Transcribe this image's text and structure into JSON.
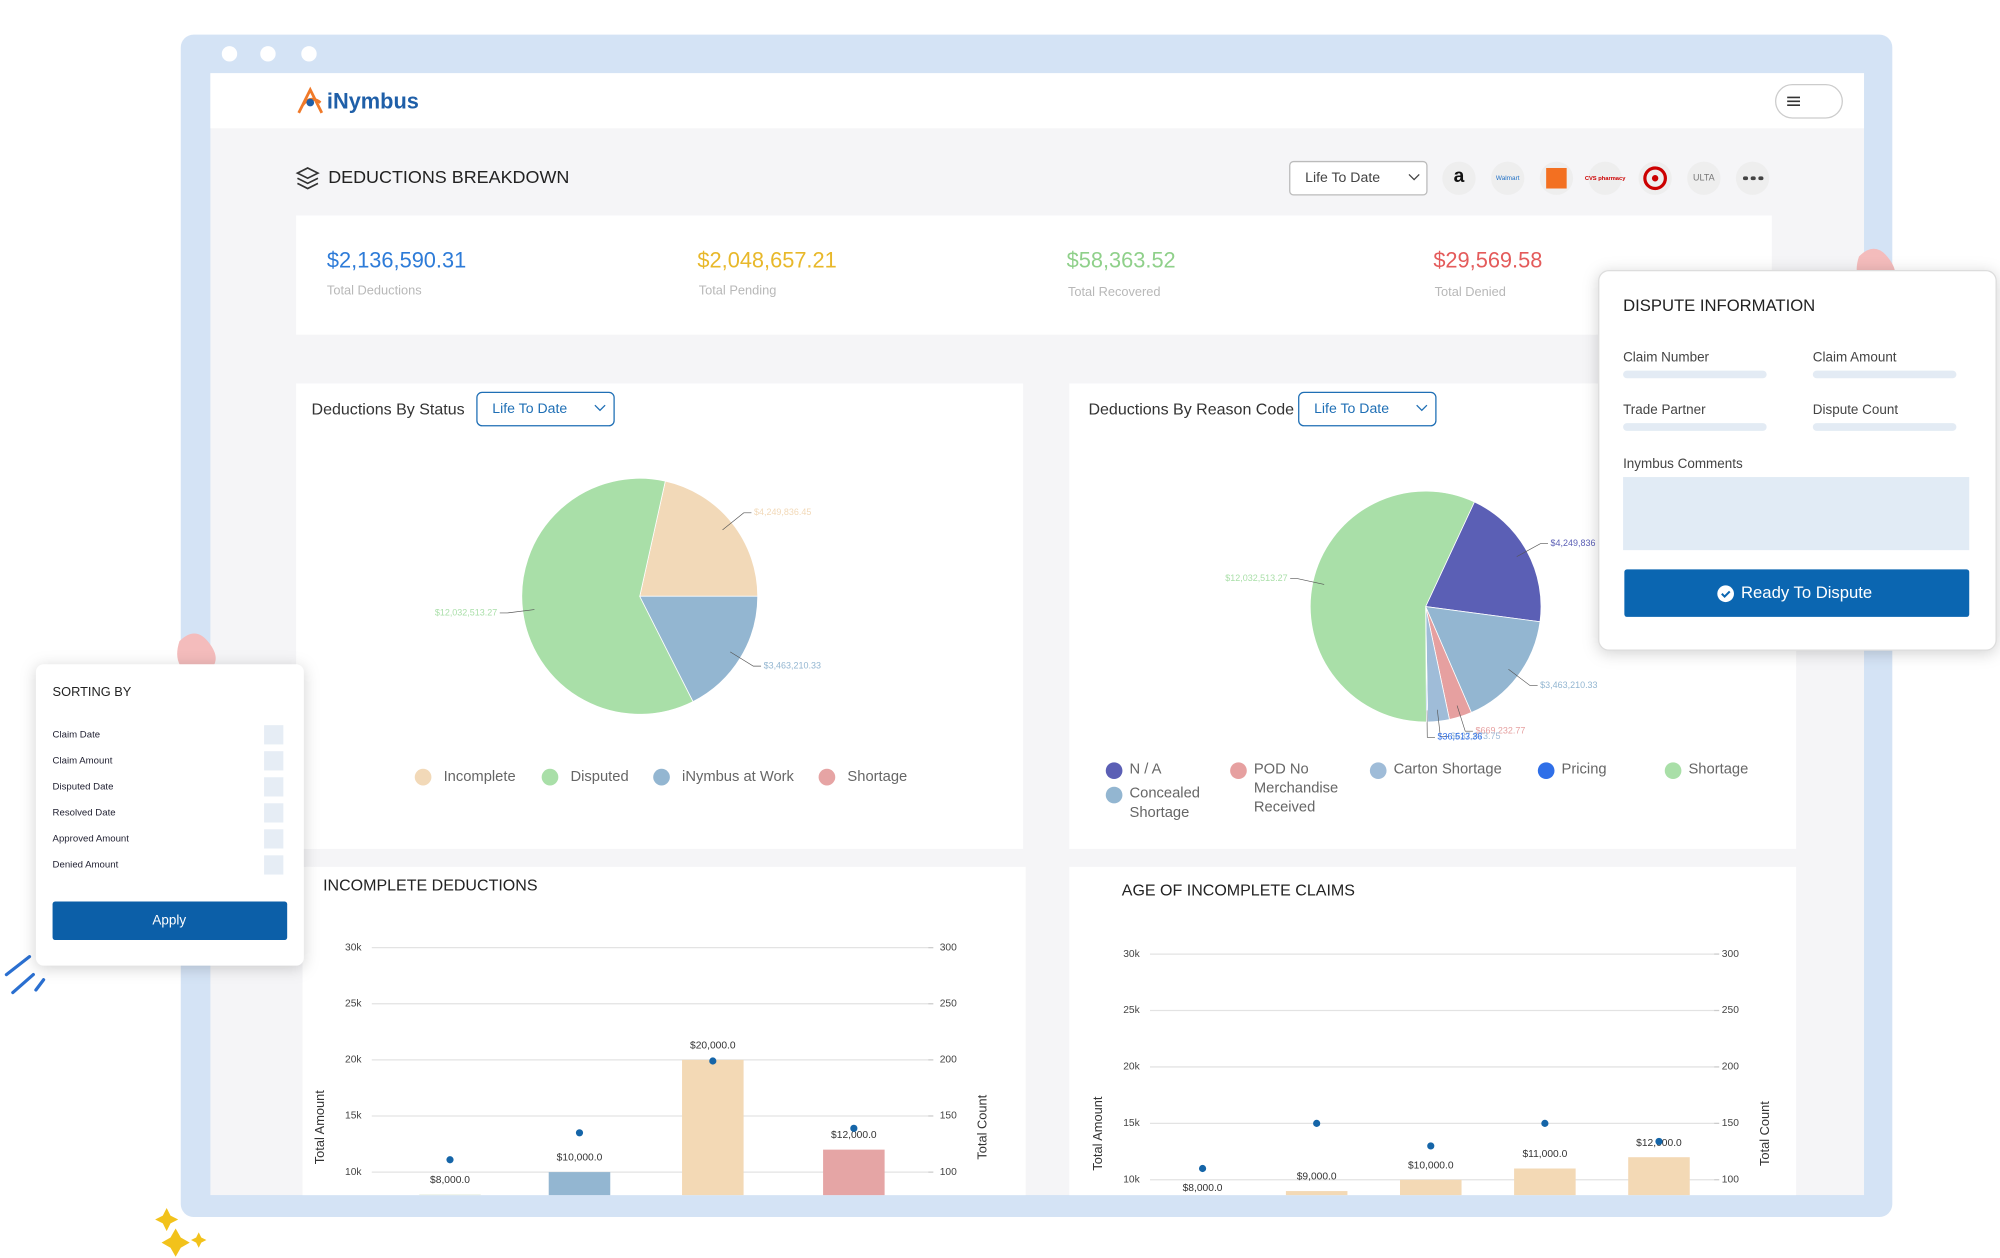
{
  "header": {
    "logo": "iNymbus"
  },
  "breakdown": {
    "title": "DEDUCTIONS BREAKDOWN",
    "period": "Life To Date",
    "partners": [
      "a",
      "Walmart",
      "CVS pharmacy",
      "ULTA"
    ]
  },
  "summary": [
    {
      "value": "$2,136,590.31",
      "label": "Total Deductions"
    },
    {
      "value": "$2,048,657.21",
      "label": "Total Pending"
    },
    {
      "value": "$58,363.52",
      "label": "Total Recovered"
    },
    {
      "value": "$29,569.58",
      "label": "Total Denied"
    }
  ],
  "charts": [
    {
      "type": "pie",
      "title": "Deductions By Status",
      "period": "Life To Date",
      "categories": [
        "Incomplete",
        "Disputed",
        "iNymbus at Work",
        "Shortage"
      ],
      "values": [
        4249836.45,
        12032513.27,
        3463210.33,
        0
      ],
      "value_labels": [
        "$4,249,836.45",
        "$12,032,513.27",
        "$3,463,210.33",
        null
      ],
      "colors": [
        "#f2d9b8",
        "#a9dfa8",
        "#93b6d1",
        "#e6a4a4"
      ]
    },
    {
      "type": "pie",
      "title": "Deductions By Reason Code",
      "period": "Life To Date",
      "categories": [
        "N / A",
        "Concealed Shortage",
        "POD No Merchandise Received",
        "Carton Shortage",
        "Pricing",
        "Shortage"
      ],
      "values": [
        4249836,
        3463210.33,
        669232.77,
        637873.75,
        36513.36,
        12032513.27
      ],
      "value_labels": [
        "$4,249,836",
        "$3,463,210.33",
        "$669,232.77",
        "$637,873.75",
        "$36,513.36",
        "$12,032,513.27"
      ],
      "colors": [
        "#5b5fb5",
        "#93b6d1",
        "#e6a0a0",
        "#9fbcd8",
        "#2f6fe8",
        "#a9dfa8"
      ]
    },
    {
      "type": "bar",
      "title": "INCOMPLETE DEDUCTIONS",
      "y_label": "Total Amount",
      "y2_label": "Total Count",
      "categories": [
        null,
        null,
        null,
        null
      ],
      "series": [
        {
          "values": [
            8000,
            10000,
            20000,
            12000
          ],
          "value_labels": [
            "$8,000.0",
            "$10,000.0",
            "$20,000.0",
            "$12,000.0"
          ],
          "colors": [
            "#dfe9d6",
            "#93b6d1",
            "#f3d9b5",
            "#e5a5a5"
          ]
        },
        {
          "axis": "y2",
          "values": [
            111,
            135,
            199,
            139
          ],
          "color": "#1565a8"
        }
      ],
      "ylim": [
        0,
        30000
      ],
      "yticks": [
        {
          "value": 10000,
          "label": "10k"
        },
        {
          "value": 15000,
          "label": "15k"
        },
        {
          "value": 20000,
          "label": "20k"
        },
        {
          "value": 25000,
          "label": "25k"
        },
        {
          "value": 30000,
          "label": "30k"
        }
      ],
      "y2lim": [
        0,
        300
      ],
      "y2ticks": [
        100,
        150,
        200,
        250,
        300
      ],
      "grid": true
    },
    {
      "type": "bar",
      "title": "AGE OF INCOMPLETE CLAIMS",
      "y_label": "Total Amount",
      "y2_label": "Total Count",
      "categories": [
        null,
        null,
        null,
        null,
        null
      ],
      "series": [
        {
          "values": [
            8000,
            9000,
            10000,
            11000,
            12000
          ],
          "value_labels": [
            "$8,000.0",
            "$9,000.0",
            "$10,000.0",
            "$11,000.0",
            "$12,000.0"
          ],
          "colors": [
            "#f3d9b5",
            "#f3d9b5",
            "#f3d9b5",
            "#f3d9b5",
            "#f3d9b5"
          ]
        },
        {
          "axis": "y2",
          "values": [
            110,
            150,
            130,
            150,
            134
          ],
          "color": "#1565a8"
        }
      ],
      "ylim": [
        0,
        30000
      ],
      "yticks": [
        {
          "value": 10000,
          "label": "10k"
        },
        {
          "value": 15000,
          "label": "15k"
        },
        {
          "value": 20000,
          "label": "20k"
        },
        {
          "value": 25000,
          "label": "25k"
        },
        {
          "value": 30000,
          "label": "30k"
        }
      ],
      "y2lim": [
        0,
        300
      ],
      "y2ticks": [
        100,
        150,
        200,
        250,
        300
      ],
      "grid": true
    }
  ],
  "sorting": {
    "title": "SORTING BY",
    "options": [
      "Claim Date",
      "Claim Amount",
      "Disputed Date",
      "Resolved Date",
      "Approved Amount",
      "Denied Amount"
    ],
    "button": "Apply"
  },
  "dispute": {
    "title": "DISPUTE INFORMATION",
    "fields": [
      "Claim Number",
      "Claim Amount",
      "Trade Partner",
      "Dispute Count"
    ],
    "comments": "Inymbus Comments",
    "button": "Ready To Dispute"
  }
}
